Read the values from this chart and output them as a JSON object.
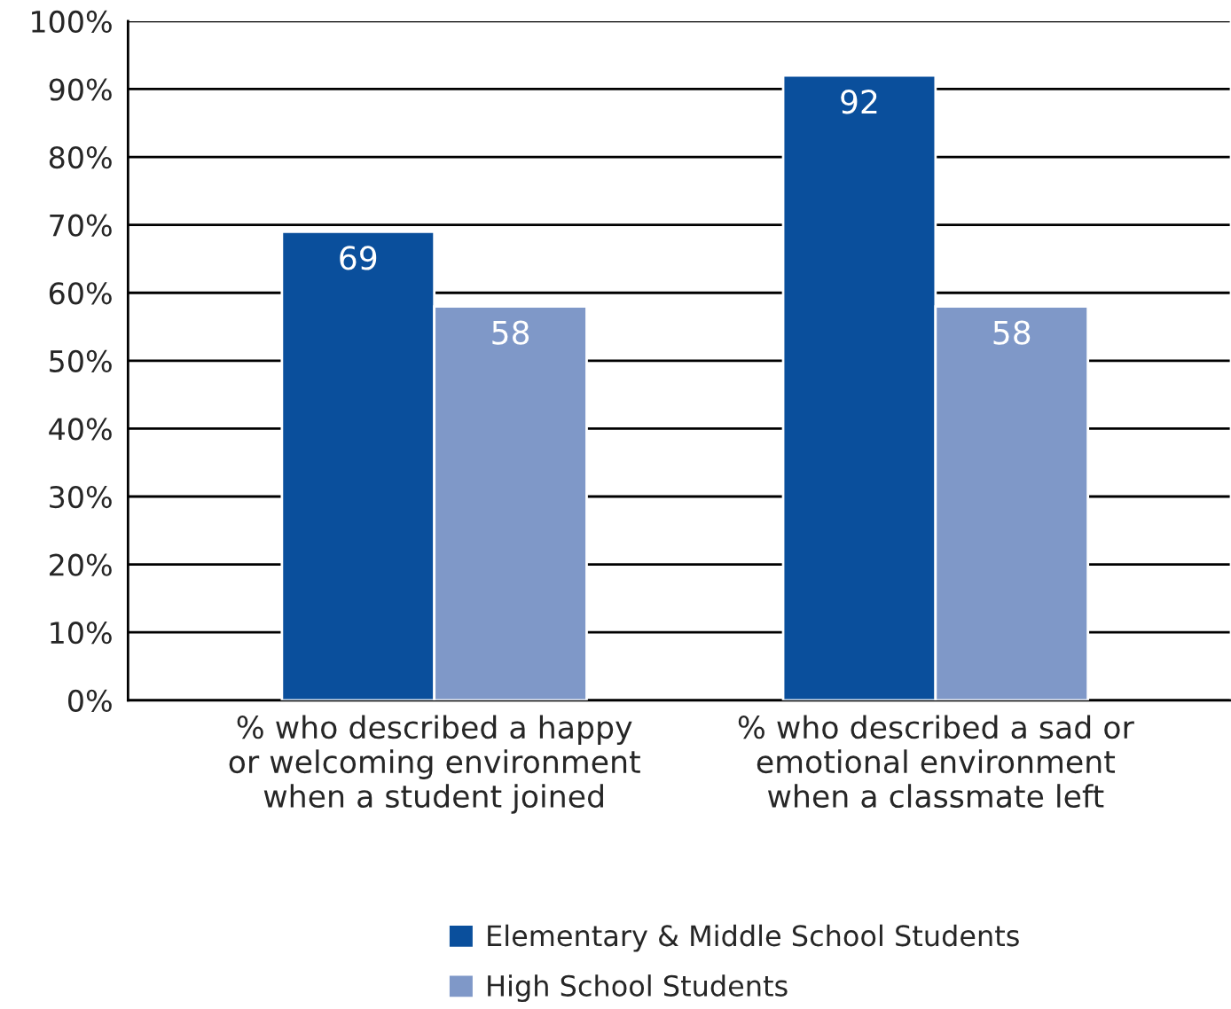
{
  "chart_data": {
    "type": "bar",
    "categories": [
      "% who described a happy\nor welcoming environment\nwhen a student joined",
      "% who described a sad or\nemotional environment\nwhen a classmate left"
    ],
    "series": [
      {
        "name": "Elementary & Middle School Students",
        "color": "#0a4f9c",
        "values": [
          69,
          92
        ]
      },
      {
        "name": "High School Students",
        "color": "#7f98c8",
        "values": [
          58,
          58
        ]
      }
    ],
    "ylim": [
      0,
      100
    ],
    "yticks": [
      {
        "value": 0,
        "label": "0%"
      },
      {
        "value": 10,
        "label": "10%"
      },
      {
        "value": 20,
        "label": "20%"
      },
      {
        "value": 30,
        "label": "30%"
      },
      {
        "value": 40,
        "label": "40%"
      },
      {
        "value": 50,
        "label": "50%"
      },
      {
        "value": 60,
        "label": "60%"
      },
      {
        "value": 70,
        "label": "70%"
      },
      {
        "value": 80,
        "label": "80%"
      },
      {
        "value": 90,
        "label": "90%"
      },
      {
        "value": 100,
        "label": "100%"
      }
    ],
    "grid": "y",
    "legend": "bottom",
    "data_labels": true
  }
}
